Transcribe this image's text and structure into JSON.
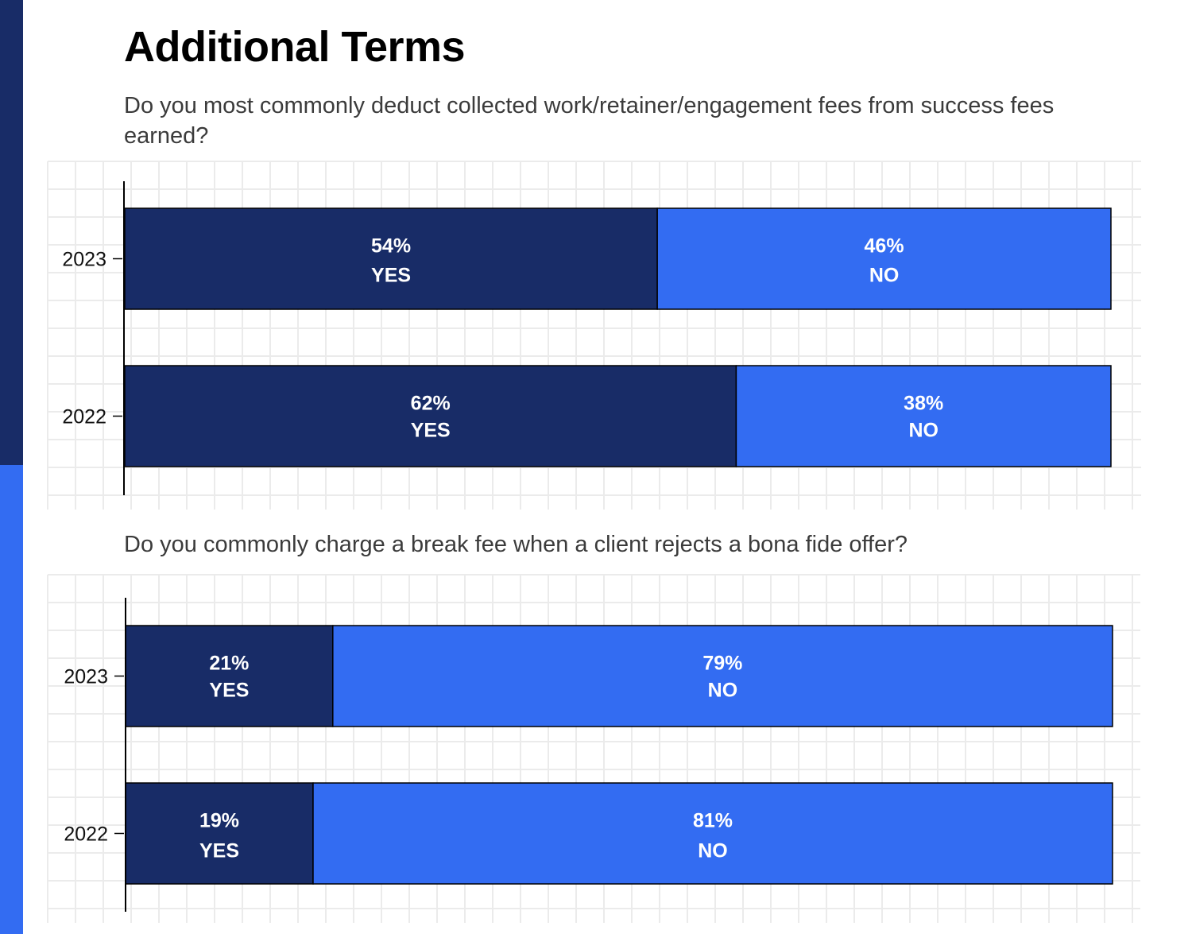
{
  "page": {
    "title": "Additional Terms",
    "accent_dark": "#182c67",
    "accent_bright": "#336cf2"
  },
  "chart_data": [
    {
      "type": "bar",
      "orientation": "horizontal",
      "stacked": true,
      "percent": true,
      "title": "Do you most commonly deduct collected work/retainer/engagement fees from success fees earned?",
      "categories": [
        "2023",
        "2022"
      ],
      "series": [
        {
          "name": "YES",
          "values": [
            54,
            62
          ],
          "color": "#182c67"
        },
        {
          "name": "NO",
          "values": [
            46,
            38
          ],
          "color": "#336cf2"
        }
      ],
      "value_labels": [
        [
          "54%",
          "62%"
        ],
        [
          "46%",
          "38%"
        ]
      ],
      "xlim": [
        0,
        100
      ],
      "grid": true
    },
    {
      "type": "bar",
      "orientation": "horizontal",
      "stacked": true,
      "percent": true,
      "title": "Do you commonly charge a break fee when a client rejects a bona fide offer?",
      "categories": [
        "2023",
        "2022"
      ],
      "series": [
        {
          "name": "YES",
          "values": [
            21,
            19
          ],
          "color": "#182c67"
        },
        {
          "name": "NO",
          "values": [
            79,
            81
          ],
          "color": "#336cf2"
        }
      ],
      "value_labels": [
        [
          "21%",
          "19%"
        ],
        [
          "79%",
          "81%"
        ]
      ],
      "xlim": [
        0,
        100
      ],
      "grid": true
    }
  ]
}
